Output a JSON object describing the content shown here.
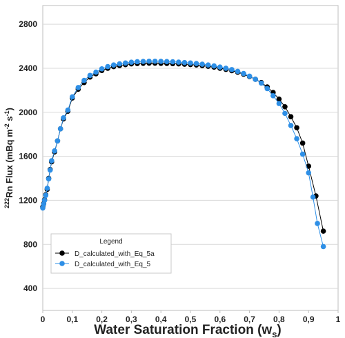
{
  "chart_data": {
    "type": "scatter",
    "xlabel": "Water Saturation Fraction (w",
    "xlabel_sub": "s",
    "xlabel_close": ")",
    "ylabel_sup": "222",
    "ylabel": "Rn Flux (mBq m",
    "ylabel_sup2": "-2",
    "ylabel_mid": " s",
    "ylabel_sup3": "-1",
    "ylabel_close": ")",
    "xlim": [
      0,
      1
    ],
    "ylim": [
      200,
      2970
    ],
    "x_ticks": [
      0,
      0.1,
      0.2,
      0.3,
      0.4,
      0.5,
      0.6,
      0.7,
      0.8,
      0.9,
      1
    ],
    "x_tick_labels": [
      "0",
      "0,1",
      "0,2",
      "0,3",
      "0,4",
      "0,5",
      "0,6",
      "0,7",
      "0,8",
      "0,9",
      "1"
    ],
    "y_ticks": [
      400,
      800,
      1200,
      1600,
      2000,
      2400,
      2800
    ],
    "y_tick_labels": [
      "400",
      "800",
      "1200",
      "1600",
      "2000",
      "2400",
      "2800"
    ],
    "grid": "horizontal",
    "legend": {
      "title": "Legend",
      "placement": "bottom-left"
    },
    "series": [
      {
        "name": "D_calculated_with_Eq_5a",
        "color": "#000000",
        "x": [
          0.0,
          0.003,
          0.006,
          0.01,
          0.015,
          0.02,
          0.025,
          0.03,
          0.04,
          0.05,
          0.06,
          0.07,
          0.085,
          0.1,
          0.12,
          0.14,
          0.16,
          0.18,
          0.2,
          0.22,
          0.24,
          0.26,
          0.28,
          0.3,
          0.32,
          0.34,
          0.36,
          0.38,
          0.4,
          0.42,
          0.44,
          0.46,
          0.48,
          0.5,
          0.52,
          0.54,
          0.56,
          0.58,
          0.6,
          0.62,
          0.64,
          0.66,
          0.68,
          0.7,
          0.72,
          0.74,
          0.76,
          0.78,
          0.8,
          0.82,
          0.84,
          0.86,
          0.88,
          0.9,
          0.925,
          0.95
        ],
        "y": [
          1140,
          1170,
          1205,
          1250,
          1300,
          1400,
          1480,
          1550,
          1640,
          1740,
          1850,
          1940,
          2010,
          2130,
          2210,
          2270,
          2320,
          2350,
          2380,
          2400,
          2415,
          2425,
          2433,
          2440,
          2443,
          2445,
          2446,
          2446,
          2445,
          2444,
          2442,
          2440,
          2437,
          2434,
          2430,
          2424,
          2418,
          2410,
          2400,
          2390,
          2378,
          2364,
          2346,
          2325,
          2300,
          2270,
          2230,
          2180,
          2120,
          2050,
          1960,
          1860,
          1720,
          1510,
          1240,
          920
        ]
      },
      {
        "name": "D_calculated_with_Eq_5",
        "color": "#2E8FE6",
        "x": [
          0.0,
          0.003,
          0.006,
          0.01,
          0.015,
          0.02,
          0.025,
          0.03,
          0.04,
          0.05,
          0.06,
          0.07,
          0.085,
          0.1,
          0.12,
          0.14,
          0.16,
          0.18,
          0.2,
          0.22,
          0.24,
          0.26,
          0.28,
          0.3,
          0.32,
          0.34,
          0.36,
          0.38,
          0.4,
          0.42,
          0.44,
          0.46,
          0.48,
          0.5,
          0.52,
          0.54,
          0.56,
          0.58,
          0.6,
          0.62,
          0.64,
          0.66,
          0.68,
          0.7,
          0.72,
          0.74,
          0.76,
          0.78,
          0.8,
          0.82,
          0.84,
          0.86,
          0.88,
          0.9,
          0.915,
          0.93,
          0.95
        ],
        "y": [
          1130,
          1165,
          1200,
          1245,
          1310,
          1395,
          1475,
          1560,
          1650,
          1740,
          1850,
          1950,
          2020,
          2140,
          2225,
          2290,
          2335,
          2365,
          2395,
          2415,
          2430,
          2440,
          2448,
          2455,
          2460,
          2462,
          2464,
          2464,
          2463,
          2461,
          2459,
          2456,
          2452,
          2448,
          2443,
          2437,
          2430,
          2421,
          2411,
          2400,
          2388,
          2372,
          2352,
          2328,
          2300,
          2265,
          2215,
          2150,
          2080,
          1990,
          1880,
          1760,
          1620,
          1450,
          1230,
          990,
          780
        ]
      }
    ]
  }
}
